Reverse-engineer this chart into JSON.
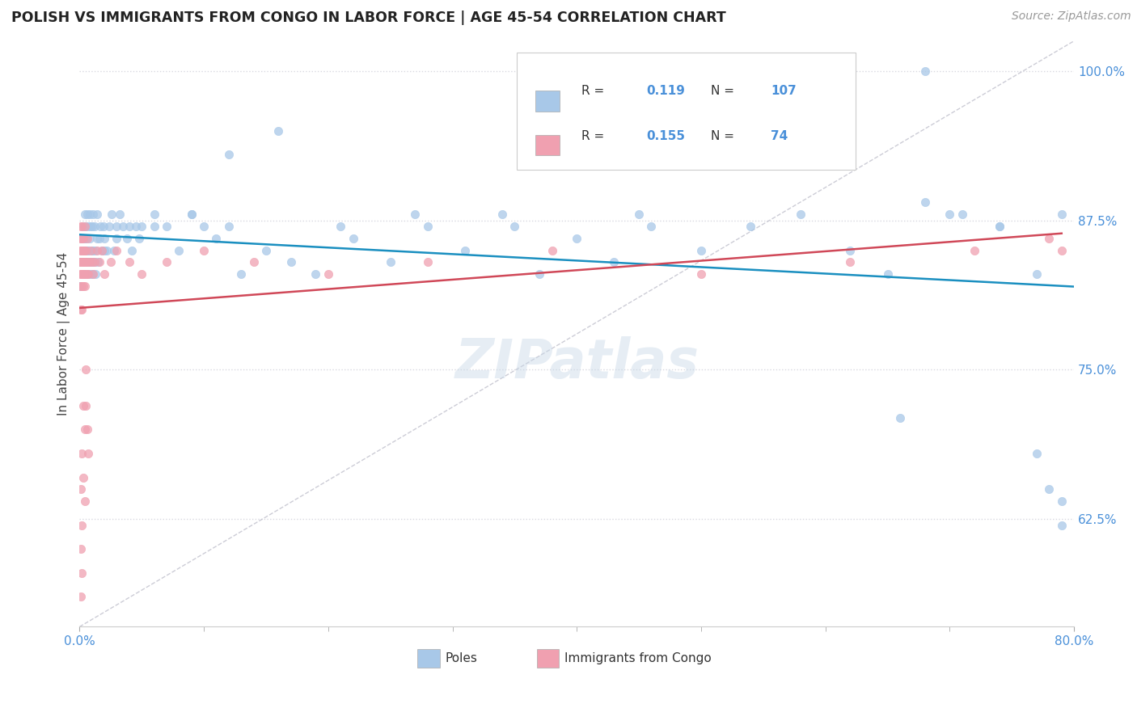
{
  "title": "POLISH VS IMMIGRANTS FROM CONGO IN LABOR FORCE | AGE 45-54 CORRELATION CHART",
  "source": "Source: ZipAtlas.com",
  "ylabel": "In Labor Force | Age 45-54",
  "y_tick_labels": [
    "62.5%",
    "75.0%",
    "87.5%",
    "100.0%"
  ],
  "y_tick_values": [
    0.625,
    0.75,
    0.875,
    1.0
  ],
  "xlim": [
    0.0,
    0.8
  ],
  "ylim": [
    0.535,
    1.025
  ],
  "legend_label_1": "Poles",
  "legend_label_2": "Immigrants from Congo",
  "R1": 0.119,
  "N1": 107,
  "R2": 0.155,
  "N2": 74,
  "color_poles": "#a8c8e8",
  "color_congo": "#f0a0b0",
  "color_poles_line": "#1a8fc0",
  "color_congo_line": "#d04858",
  "color_diagonal": "#c0c0cc",
  "background_color": "#ffffff",
  "watermark": "ZIPatlas",
  "poles_x": [
    0.001,
    0.002,
    0.002,
    0.003,
    0.003,
    0.003,
    0.004,
    0.004,
    0.004,
    0.005,
    0.005,
    0.005,
    0.005,
    0.006,
    0.006,
    0.006,
    0.007,
    0.007,
    0.007,
    0.008,
    0.008,
    0.008,
    0.009,
    0.009,
    0.01,
    0.01,
    0.01,
    0.011,
    0.011,
    0.012,
    0.012,
    0.013,
    0.013,
    0.014,
    0.014,
    0.015,
    0.016,
    0.017,
    0.018,
    0.019,
    0.02,
    0.022,
    0.024,
    0.026,
    0.028,
    0.03,
    0.032,
    0.035,
    0.038,
    0.04,
    0.042,
    0.045,
    0.048,
    0.05,
    0.06,
    0.07,
    0.08,
    0.09,
    0.1,
    0.11,
    0.12,
    0.13,
    0.15,
    0.17,
    0.19,
    0.22,
    0.25,
    0.28,
    0.31,
    0.34,
    0.37,
    0.4,
    0.43,
    0.46,
    0.5,
    0.54,
    0.58,
    0.62,
    0.66,
    0.7,
    0.74,
    0.77,
    0.79,
    0.79,
    0.79,
    0.78,
    0.77,
    0.74,
    0.71,
    0.68,
    0.65,
    0.0,
    0.0,
    0.0,
    0.01,
    0.02,
    0.03,
    0.06,
    0.09,
    0.12,
    0.16,
    0.21,
    0.27,
    0.35,
    0.45,
    0.56,
    0.68
  ],
  "poles_y": [
    0.84,
    0.86,
    0.84,
    0.87,
    0.85,
    0.83,
    0.86,
    0.84,
    0.88,
    0.85,
    0.87,
    0.83,
    0.86,
    0.84,
    0.88,
    0.85,
    0.84,
    0.87,
    0.85,
    0.83,
    0.86,
    0.88,
    0.84,
    0.87,
    0.85,
    0.83,
    0.87,
    0.85,
    0.88,
    0.84,
    0.87,
    0.85,
    0.83,
    0.86,
    0.88,
    0.84,
    0.86,
    0.87,
    0.85,
    0.87,
    0.86,
    0.85,
    0.87,
    0.88,
    0.85,
    0.87,
    0.88,
    0.87,
    0.86,
    0.87,
    0.85,
    0.87,
    0.86,
    0.87,
    0.88,
    0.87,
    0.85,
    0.88,
    0.87,
    0.86,
    0.87,
    0.83,
    0.85,
    0.84,
    0.83,
    0.86,
    0.84,
    0.87,
    0.85,
    0.88,
    0.83,
    0.86,
    0.84,
    0.87,
    0.85,
    0.87,
    0.88,
    0.85,
    0.71,
    0.88,
    0.87,
    0.68,
    0.88,
    0.64,
    0.62,
    0.65,
    0.83,
    0.87,
    0.88,
    0.89,
    0.83,
    0.82,
    0.84,
    0.82,
    0.84,
    0.85,
    0.86,
    0.87,
    0.88,
    0.93,
    0.95,
    0.87,
    0.88,
    0.87,
    0.88,
    0.99,
    1.0
  ],
  "congo_x": [
    0.001,
    0.001,
    0.001,
    0.001,
    0.001,
    0.001,
    0.001,
    0.001,
    0.001,
    0.001,
    0.001,
    0.002,
    0.002,
    0.002,
    0.002,
    0.002,
    0.002,
    0.002,
    0.002,
    0.003,
    0.003,
    0.003,
    0.003,
    0.003,
    0.003,
    0.004,
    0.004,
    0.004,
    0.004,
    0.005,
    0.005,
    0.005,
    0.006,
    0.006,
    0.007,
    0.007,
    0.008,
    0.009,
    0.01,
    0.011,
    0.012,
    0.014,
    0.016,
    0.018,
    0.02,
    0.025,
    0.03,
    0.04,
    0.05,
    0.07,
    0.1,
    0.14,
    0.2,
    0.28,
    0.38,
    0.5,
    0.62,
    0.72,
    0.78,
    0.79,
    0.001,
    0.001,
    0.001,
    0.002,
    0.002,
    0.002,
    0.003,
    0.003,
    0.004,
    0.004,
    0.005,
    0.005,
    0.006,
    0.007
  ],
  "congo_y": [
    0.84,
    0.86,
    0.83,
    0.85,
    0.82,
    0.87,
    0.8,
    0.84,
    0.86,
    0.83,
    0.85,
    0.84,
    0.82,
    0.86,
    0.83,
    0.85,
    0.8,
    0.87,
    0.84,
    0.83,
    0.85,
    0.82,
    0.86,
    0.84,
    0.83,
    0.85,
    0.82,
    0.84,
    0.87,
    0.83,
    0.85,
    0.84,
    0.83,
    0.86,
    0.84,
    0.83,
    0.84,
    0.85,
    0.84,
    0.83,
    0.84,
    0.85,
    0.84,
    0.85,
    0.83,
    0.84,
    0.85,
    0.84,
    0.83,
    0.84,
    0.85,
    0.84,
    0.83,
    0.84,
    0.85,
    0.83,
    0.84,
    0.85,
    0.86,
    0.85,
    0.6,
    0.56,
    0.65,
    0.58,
    0.68,
    0.62,
    0.72,
    0.66,
    0.7,
    0.64,
    0.75,
    0.72,
    0.7,
    0.68
  ]
}
